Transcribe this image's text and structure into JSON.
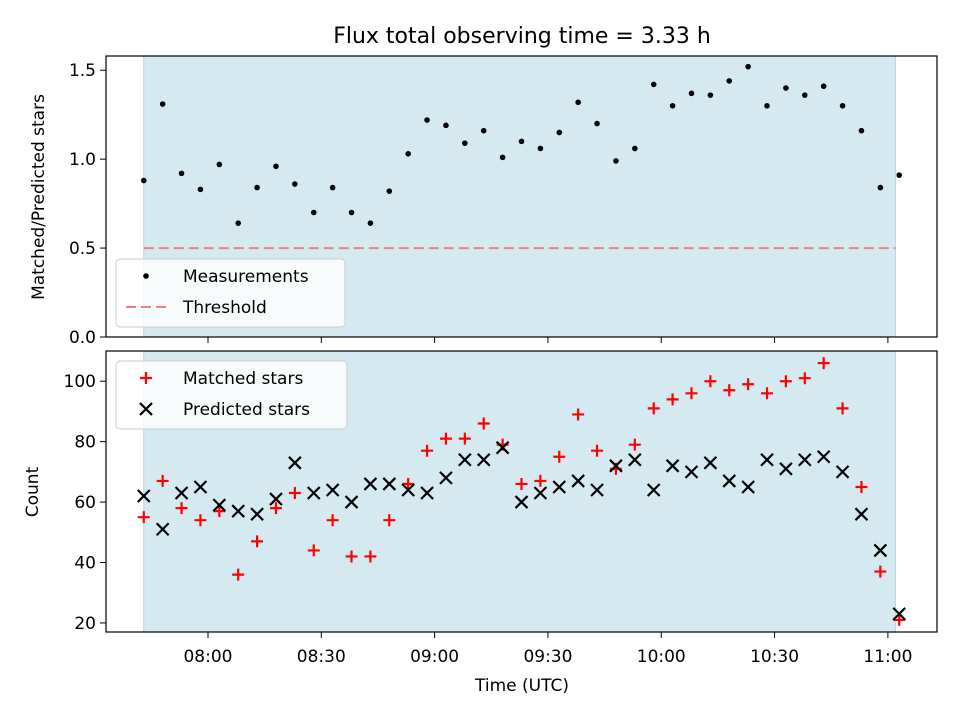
{
  "chart_data": [
    {
      "type": "scatter",
      "title": "Flux total observing time = 3.33 h",
      "xlabel": "",
      "ylabel": "Matched/Predicted stars",
      "ylim": [
        0,
        1.58
      ],
      "yticks": [
        0.0,
        0.5,
        1.0,
        1.5
      ],
      "ytick_labels": [
        "0.0",
        "0.5",
        "1.0",
        "1.5"
      ],
      "shaded_span": [
        "07:43",
        "11:02"
      ],
      "shade_color": "#d5eaf0",
      "legend_location": "lower left",
      "series": [
        {
          "name": "Measurements",
          "marker": "dot",
          "color": "#000000",
          "x": [
            "07:43",
            "07:48",
            "07:53",
            "07:58",
            "08:03",
            "08:08",
            "08:13",
            "08:18",
            "08:23",
            "08:28",
            "08:33",
            "08:38",
            "08:43",
            "08:48",
            "08:53",
            "08:58",
            "09:03",
            "09:08",
            "09:13",
            "09:18",
            "09:23",
            "09:28",
            "09:33",
            "09:38",
            "09:43",
            "09:48",
            "09:53",
            "09:58",
            "10:03",
            "10:08",
            "10:13",
            "10:18",
            "10:23",
            "10:28",
            "10:33",
            "10:38",
            "10:43",
            "10:48",
            "10:53",
            "10:58",
            "11:03"
          ],
          "y": [
            0.88,
            1.31,
            0.92,
            0.83,
            0.97,
            0.64,
            0.84,
            0.96,
            0.86,
            0.7,
            0.84,
            0.7,
            0.64,
            0.82,
            1.03,
            1.22,
            1.19,
            1.09,
            1.16,
            1.01,
            1.1,
            1.06,
            1.15,
            1.32,
            1.2,
            0.99,
            1.06,
            1.42,
            1.3,
            1.37,
            1.36,
            1.44,
            1.52,
            1.3,
            1.4,
            1.36,
            1.41,
            1.3,
            1.16,
            0.84,
            0.91
          ]
        },
        {
          "name": "Threshold",
          "type": "hline",
          "y": 0.5,
          "style": "dashed",
          "color": "#f08080"
        }
      ]
    },
    {
      "type": "scatter",
      "xlabel": "Time (UTC)",
      "ylabel": "Count",
      "ylim": [
        17,
        110
      ],
      "yticks": [
        20,
        40,
        60,
        80,
        100
      ],
      "ytick_labels": [
        "20",
        "40",
        "60",
        "80",
        "100"
      ],
      "xticks": [
        "08:00",
        "08:30",
        "09:00",
        "09:30",
        "10:00",
        "10:30",
        "11:00"
      ],
      "shaded_span": [
        "07:43",
        "11:02"
      ],
      "shade_color": "#d5eaf0",
      "legend_location": "upper left",
      "series": [
        {
          "name": "Matched stars",
          "marker": "plus",
          "color": "#ff0000",
          "x": [
            "07:43",
            "07:48",
            "07:53",
            "07:58",
            "08:03",
            "08:08",
            "08:13",
            "08:18",
            "08:23",
            "08:28",
            "08:33",
            "08:38",
            "08:43",
            "08:48",
            "08:53",
            "08:58",
            "09:03",
            "09:08",
            "09:13",
            "09:18",
            "09:23",
            "09:28",
            "09:33",
            "09:38",
            "09:43",
            "09:48",
            "09:53",
            "09:58",
            "10:03",
            "10:08",
            "10:13",
            "10:18",
            "10:23",
            "10:28",
            "10:33",
            "10:38",
            "10:43",
            "10:48",
            "10:53",
            "10:58",
            "11:03"
          ],
          "y": [
            55,
            67,
            58,
            54,
            57,
            36,
            47,
            58,
            63,
            44,
            54,
            42,
            42,
            54,
            66,
            77,
            81,
            81,
            86,
            79,
            66,
            67,
            75,
            89,
            77,
            71,
            79,
            91,
            94,
            96,
            100,
            97,
            99,
            96,
            100,
            101,
            106,
            91,
            65,
            37,
            21
          ]
        },
        {
          "name": "Predicted stars",
          "marker": "x",
          "color": "#000000",
          "x": [
            "07:43",
            "07:48",
            "07:53",
            "07:58",
            "08:03",
            "08:08",
            "08:13",
            "08:18",
            "08:23",
            "08:28",
            "08:33",
            "08:38",
            "08:43",
            "08:48",
            "08:53",
            "08:58",
            "09:03",
            "09:08",
            "09:13",
            "09:18",
            "09:23",
            "09:28",
            "09:33",
            "09:38",
            "09:43",
            "09:48",
            "09:53",
            "09:58",
            "10:03",
            "10:08",
            "10:13",
            "10:18",
            "10:23",
            "10:28",
            "10:33",
            "10:38",
            "10:43",
            "10:48",
            "10:53",
            "10:58",
            "11:03"
          ],
          "y": [
            62,
            51,
            63,
            65,
            59,
            57,
            56,
            61,
            73,
            63,
            64,
            60,
            66,
            66,
            64,
            63,
            68,
            74,
            74,
            78,
            60,
            63,
            65,
            67,
            64,
            72,
            74,
            64,
            72,
            70,
            73,
            67,
            65,
            74,
            71,
            74,
            75,
            70,
            56,
            44,
            23
          ]
        }
      ]
    }
  ]
}
